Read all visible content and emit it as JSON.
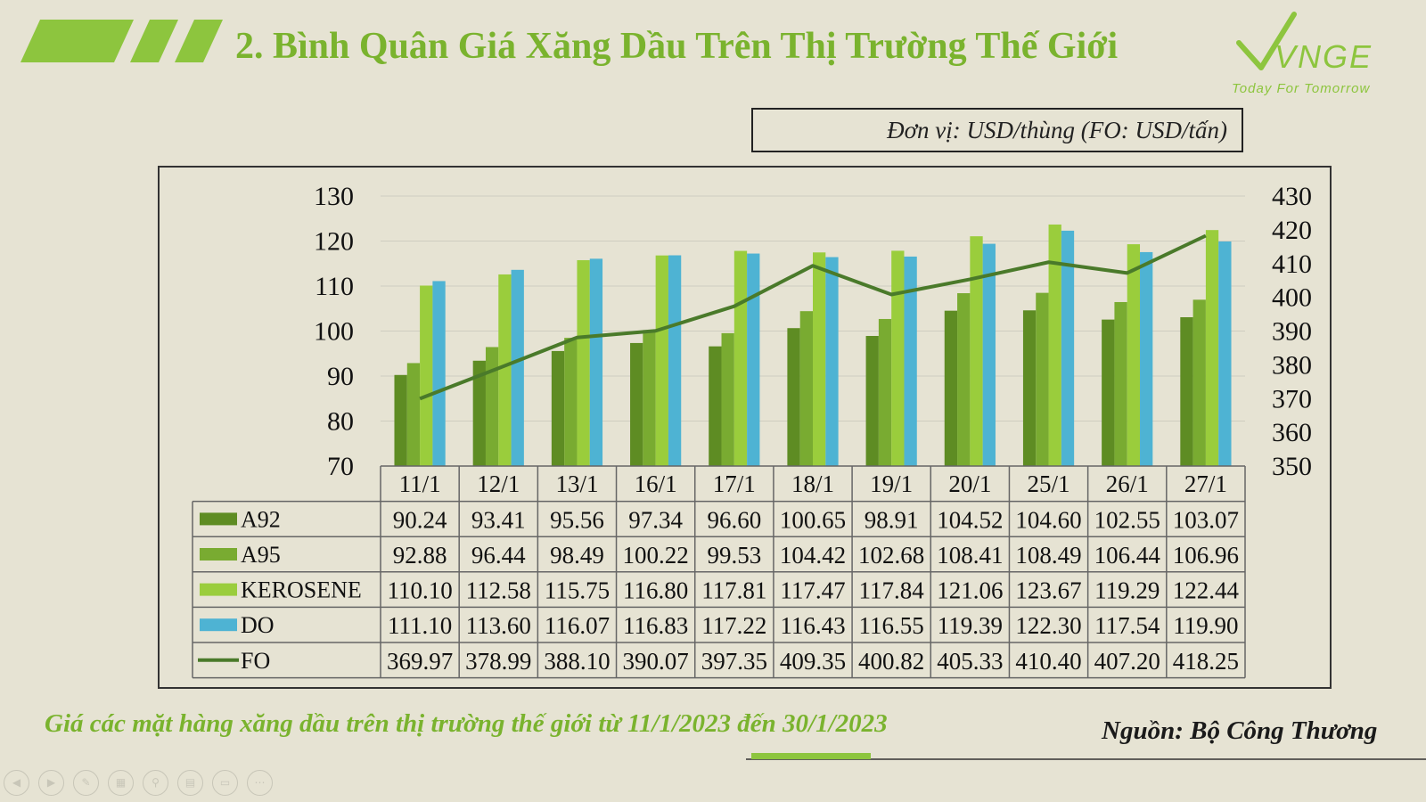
{
  "slide": {
    "title": "2. Bình Quân Giá Xăng Dầu Trên Thị Trường Thế Giới",
    "logo": {
      "name": "VNGE",
      "tagline": "Today For Tomorrow"
    },
    "unit_label": "Đơn vị: USD/thùng (FO: USD/tấn)",
    "caption": "Giá các mặt hàng xăng dầu trên thị trường thế giới từ 11/1/2023 đến 30/1/2023",
    "source": "Nguồn: Bộ Công Thương",
    "controls": [
      "prev-icon",
      "next-icon",
      "pen-icon",
      "slides-icon",
      "zoom-icon",
      "subtitle-icon",
      "camera-off-icon",
      "more-icon"
    ]
  },
  "chart_data": {
    "type": "bar",
    "categories": [
      "11/1",
      "12/1",
      "13/1",
      "16/1",
      "17/1",
      "18/1",
      "19/1",
      "20/1",
      "25/1",
      "26/1",
      "27/1"
    ],
    "ylim": [
      70,
      130
    ],
    "yticks": [
      70,
      80,
      90,
      100,
      110,
      120,
      130
    ],
    "y2lim": [
      350,
      430
    ],
    "y2ticks": [
      350,
      360,
      370,
      380,
      390,
      400,
      410,
      420,
      430
    ],
    "grid": true,
    "data_table": true,
    "series": [
      {
        "name": "A92",
        "type": "bar",
        "axis": "left",
        "color": "#5e8c23",
        "values": [
          90.24,
          93.41,
          95.56,
          97.34,
          96.6,
          100.65,
          98.91,
          104.52,
          104.6,
          102.55,
          103.07
        ],
        "labels": [
          "90.24",
          "93.41",
          "95.56",
          "97.34",
          "96.60",
          "100.65",
          "98.91",
          "104.52",
          "104.60",
          "102.55",
          "103.07"
        ]
      },
      {
        "name": "A95",
        "type": "bar",
        "axis": "left",
        "color": "#79ab31",
        "values": [
          92.88,
          96.44,
          98.49,
          100.22,
          99.53,
          104.42,
          102.68,
          108.41,
          108.49,
          106.44,
          106.96
        ],
        "labels": [
          "92.88",
          "96.44",
          "98.49",
          "100.22",
          "99.53",
          "104.42",
          "102.68",
          "108.41",
          "108.49",
          "106.44",
          "106.96"
        ]
      },
      {
        "name": "KEROSENE",
        "type": "bar",
        "axis": "left",
        "color": "#9acd3c",
        "values": [
          110.1,
          112.58,
          115.75,
          116.8,
          117.81,
          117.47,
          117.84,
          121.06,
          123.67,
          119.29,
          122.44
        ],
        "labels": [
          "110.10",
          "112.58",
          "115.75",
          "116.80",
          "117.81",
          "117.47",
          "117.84",
          "121.06",
          "123.67",
          "119.29",
          "122.44"
        ]
      },
      {
        "name": "DO",
        "type": "bar",
        "axis": "left",
        "color": "#4eb3d3",
        "values": [
          111.1,
          113.6,
          116.07,
          116.83,
          117.22,
          116.43,
          116.55,
          119.39,
          122.3,
          117.54,
          119.9
        ],
        "labels": [
          "111.10",
          "113.60",
          "116.07",
          "116.83",
          "117.22",
          "116.43",
          "116.55",
          "119.39",
          "122.30",
          "117.54",
          "119.90"
        ]
      },
      {
        "name": "FO",
        "type": "line",
        "axis": "right",
        "color": "#4a7a2a",
        "values": [
          369.97,
          378.99,
          388.1,
          390.07,
          397.35,
          409.35,
          400.82,
          405.33,
          410.4,
          407.2,
          418.25
        ],
        "labels": [
          "369.97",
          "378.99",
          "388.10",
          "390.07",
          "397.35",
          "409.35",
          "400.82",
          "405.33",
          "410.40",
          "407.20",
          "418.25"
        ]
      }
    ]
  }
}
